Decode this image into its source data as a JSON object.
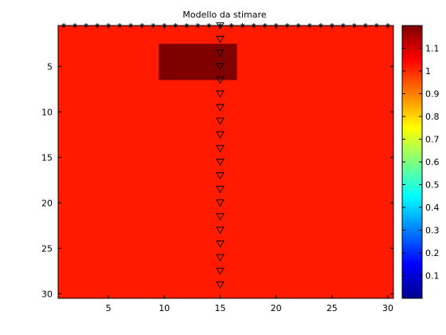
{
  "chart_data": {
    "type": "heatmap",
    "title": "Modello da stimare",
    "xlabel": "",
    "ylabel": "",
    "xlim": [
      0.5,
      30.5
    ],
    "ylim": [
      0.5,
      30.5
    ],
    "y_direction": "reversed",
    "x_ticks": [
      5,
      10,
      15,
      20,
      25,
      30
    ],
    "x_tick_labels": [
      "5",
      "10",
      "15",
      "20",
      "25",
      "30"
    ],
    "y_ticks": [
      5,
      10,
      15,
      20,
      25,
      30
    ],
    "y_tick_labels": [
      "5",
      "10",
      "15",
      "20",
      "25",
      "30"
    ],
    "background_value": 1,
    "background_color": "#ff1a00",
    "anomaly": {
      "x_range": [
        9.5,
        16.5
      ],
      "y_range": [
        2.5,
        6.5
      ],
      "value": 1.2,
      "color": "#800000"
    },
    "sources": {
      "marker": "asterisk",
      "y": 0.5,
      "x": [
        1,
        2,
        3,
        4,
        5,
        6,
        7,
        8,
        9,
        10,
        11,
        12,
        13,
        14,
        15,
        16,
        17,
        18,
        19,
        20,
        21,
        22,
        23,
        24,
        25,
        26,
        27,
        28,
        29,
        30
      ]
    },
    "receivers": {
      "marker": "triangle-down",
      "x": 15,
      "y": [
        0.5,
        2,
        3.5,
        5,
        6.5,
        8,
        9.5,
        11,
        12.5,
        14,
        15.5,
        17,
        18.5,
        20,
        21.5,
        23,
        24.5,
        26,
        27.5,
        29
      ]
    },
    "colorbar": {
      "colormap": "jet",
      "clim": [
        0.0,
        1.2
      ],
      "ticks": [
        0.1,
        0.2,
        0.3,
        0.4,
        0.5,
        0.6,
        0.7,
        0.8,
        0.9,
        1.0,
        1.1
      ],
      "tick_labels": [
        "0.1",
        "0.2",
        "0.3",
        "0.4",
        "0.5",
        "0.6",
        "0.7",
        "0.8",
        "0.9",
        "1",
        "1.1"
      ]
    },
    "grid": false
  }
}
